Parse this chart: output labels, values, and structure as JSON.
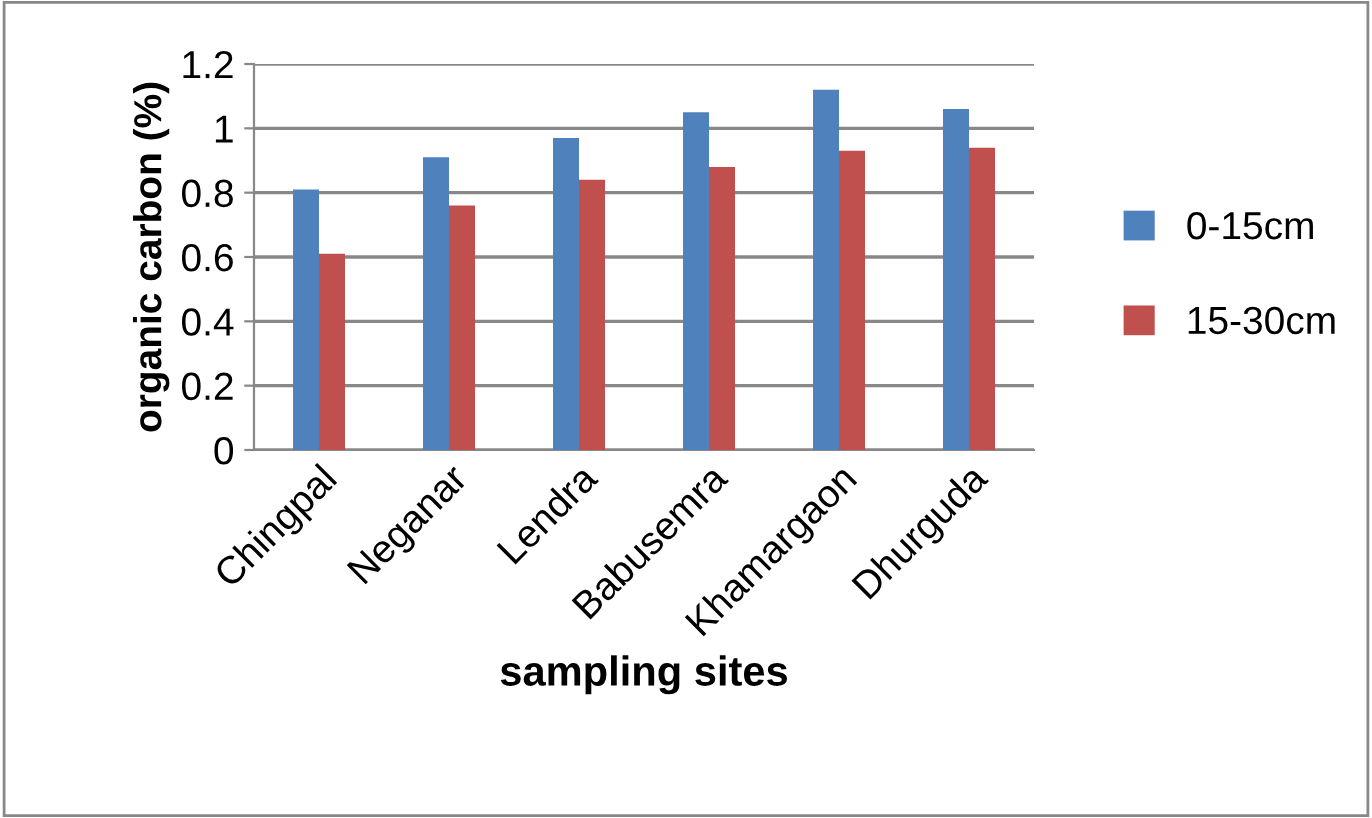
{
  "chart_data": {
    "type": "bar",
    "xlabel": "sampling sites",
    "ylabel": "organic carbon (%)",
    "categories": [
      "Chingpal",
      "Neganar",
      "Lendra",
      "Babusemra",
      "Khamargaon",
      "Dhurguda"
    ],
    "series": [
      {
        "name": "0-15cm",
        "color": "#4f81bd",
        "values": [
          0.81,
          0.91,
          0.97,
          1.05,
          1.12,
          1.06
        ]
      },
      {
        "name": "15-30cm",
        "color": "#c0504d",
        "values": [
          0.61,
          0.76,
          0.84,
          0.88,
          0.93,
          0.94
        ]
      }
    ],
    "ylim": [
      0,
      1.2
    ],
    "yticks": [
      0,
      {
        "value": 0.2,
        "label": "0.2"
      },
      {
        "value": 0.4,
        "label": "0.4"
      },
      {
        "value": 0.6,
        "label": "0.6"
      },
      {
        "value": 0.8,
        "label": "0.8"
      },
      1,
      {
        "value": 1.2,
        "label": "1.2"
      }
    ],
    "grid": "y",
    "legend": "right"
  }
}
